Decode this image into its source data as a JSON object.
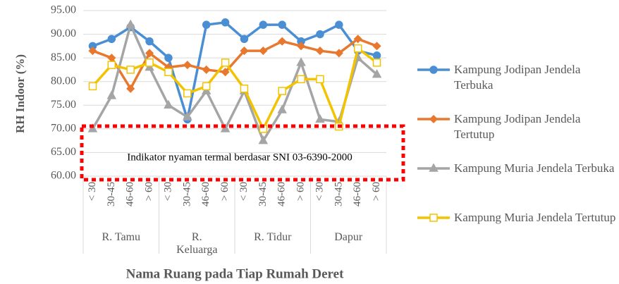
{
  "chart_data": {
    "type": "line",
    "y_label": "RH Indoor (%)",
    "x_label": "Nama Ruang pada Tiap Rumah Deret",
    "annotation": "Indikator nyaman termal berdasar SNI 03-6390-2000",
    "groups": [
      "R. Tamu",
      "R. Keluarga",
      "R. Tidur",
      "Dapur"
    ],
    "categories": [
      "< 30",
      "30-45",
      "46-60",
      "> 60",
      "< 30",
      "30-45",
      "46-60",
      "> 60",
      "< 30",
      "30-45",
      "46-60",
      "> 60",
      "< 30",
      "30-45",
      "46-60",
      "> 60"
    ],
    "ylim": [
      60,
      95
    ],
    "yticks": [
      {
        "value": 60,
        "label": "60.00"
      },
      {
        "value": 65,
        "label": "65.00"
      },
      {
        "value": 70,
        "label": "70.00"
      },
      {
        "value": 75,
        "label": "75.00"
      },
      {
        "value": 80,
        "label": "80.00"
      },
      {
        "value": 85,
        "label": "85.00"
      },
      {
        "value": 90,
        "label": "90.00"
      },
      {
        "value": 95,
        "label": "95.00"
      }
    ],
    "grid": true,
    "legend": "right",
    "series": [
      {
        "name": "Kampung Jodipan Jendela Terbuka",
        "color": "#4a8fd4",
        "marker": "circle",
        "values": [
          87.5,
          89,
          91.5,
          88.5,
          85,
          72,
          92,
          92.5,
          89,
          92,
          92,
          88.5,
          90,
          92,
          86.5,
          85.5
        ]
      },
      {
        "name": "Kampung Jodipan Jendela Tertutup",
        "color": "#e8782e",
        "marker": "diamond",
        "values": [
          86.5,
          85,
          78.5,
          86,
          83,
          83.5,
          82.5,
          82,
          86.5,
          86.5,
          88.5,
          87.5,
          86.5,
          86,
          89,
          87.5
        ]
      },
      {
        "name": "Kampung Muria Jendela Terbuka",
        "color": "#a5a5a5",
        "marker": "triangle",
        "values": [
          70,
          77,
          92,
          83,
          75,
          72.5,
          78,
          70,
          78,
          67.5,
          74,
          84,
          72,
          71.5,
          85,
          81.5
        ]
      },
      {
        "name": "Kampung Muria Jendela Tertutup",
        "color": "#f2c300",
        "marker": "square",
        "values": [
          79,
          83.5,
          82.5,
          84,
          82,
          77.5,
          79,
          84,
          78.5,
          70,
          78,
          80.5,
          80.5,
          70.5,
          87,
          84
        ]
      }
    ]
  }
}
